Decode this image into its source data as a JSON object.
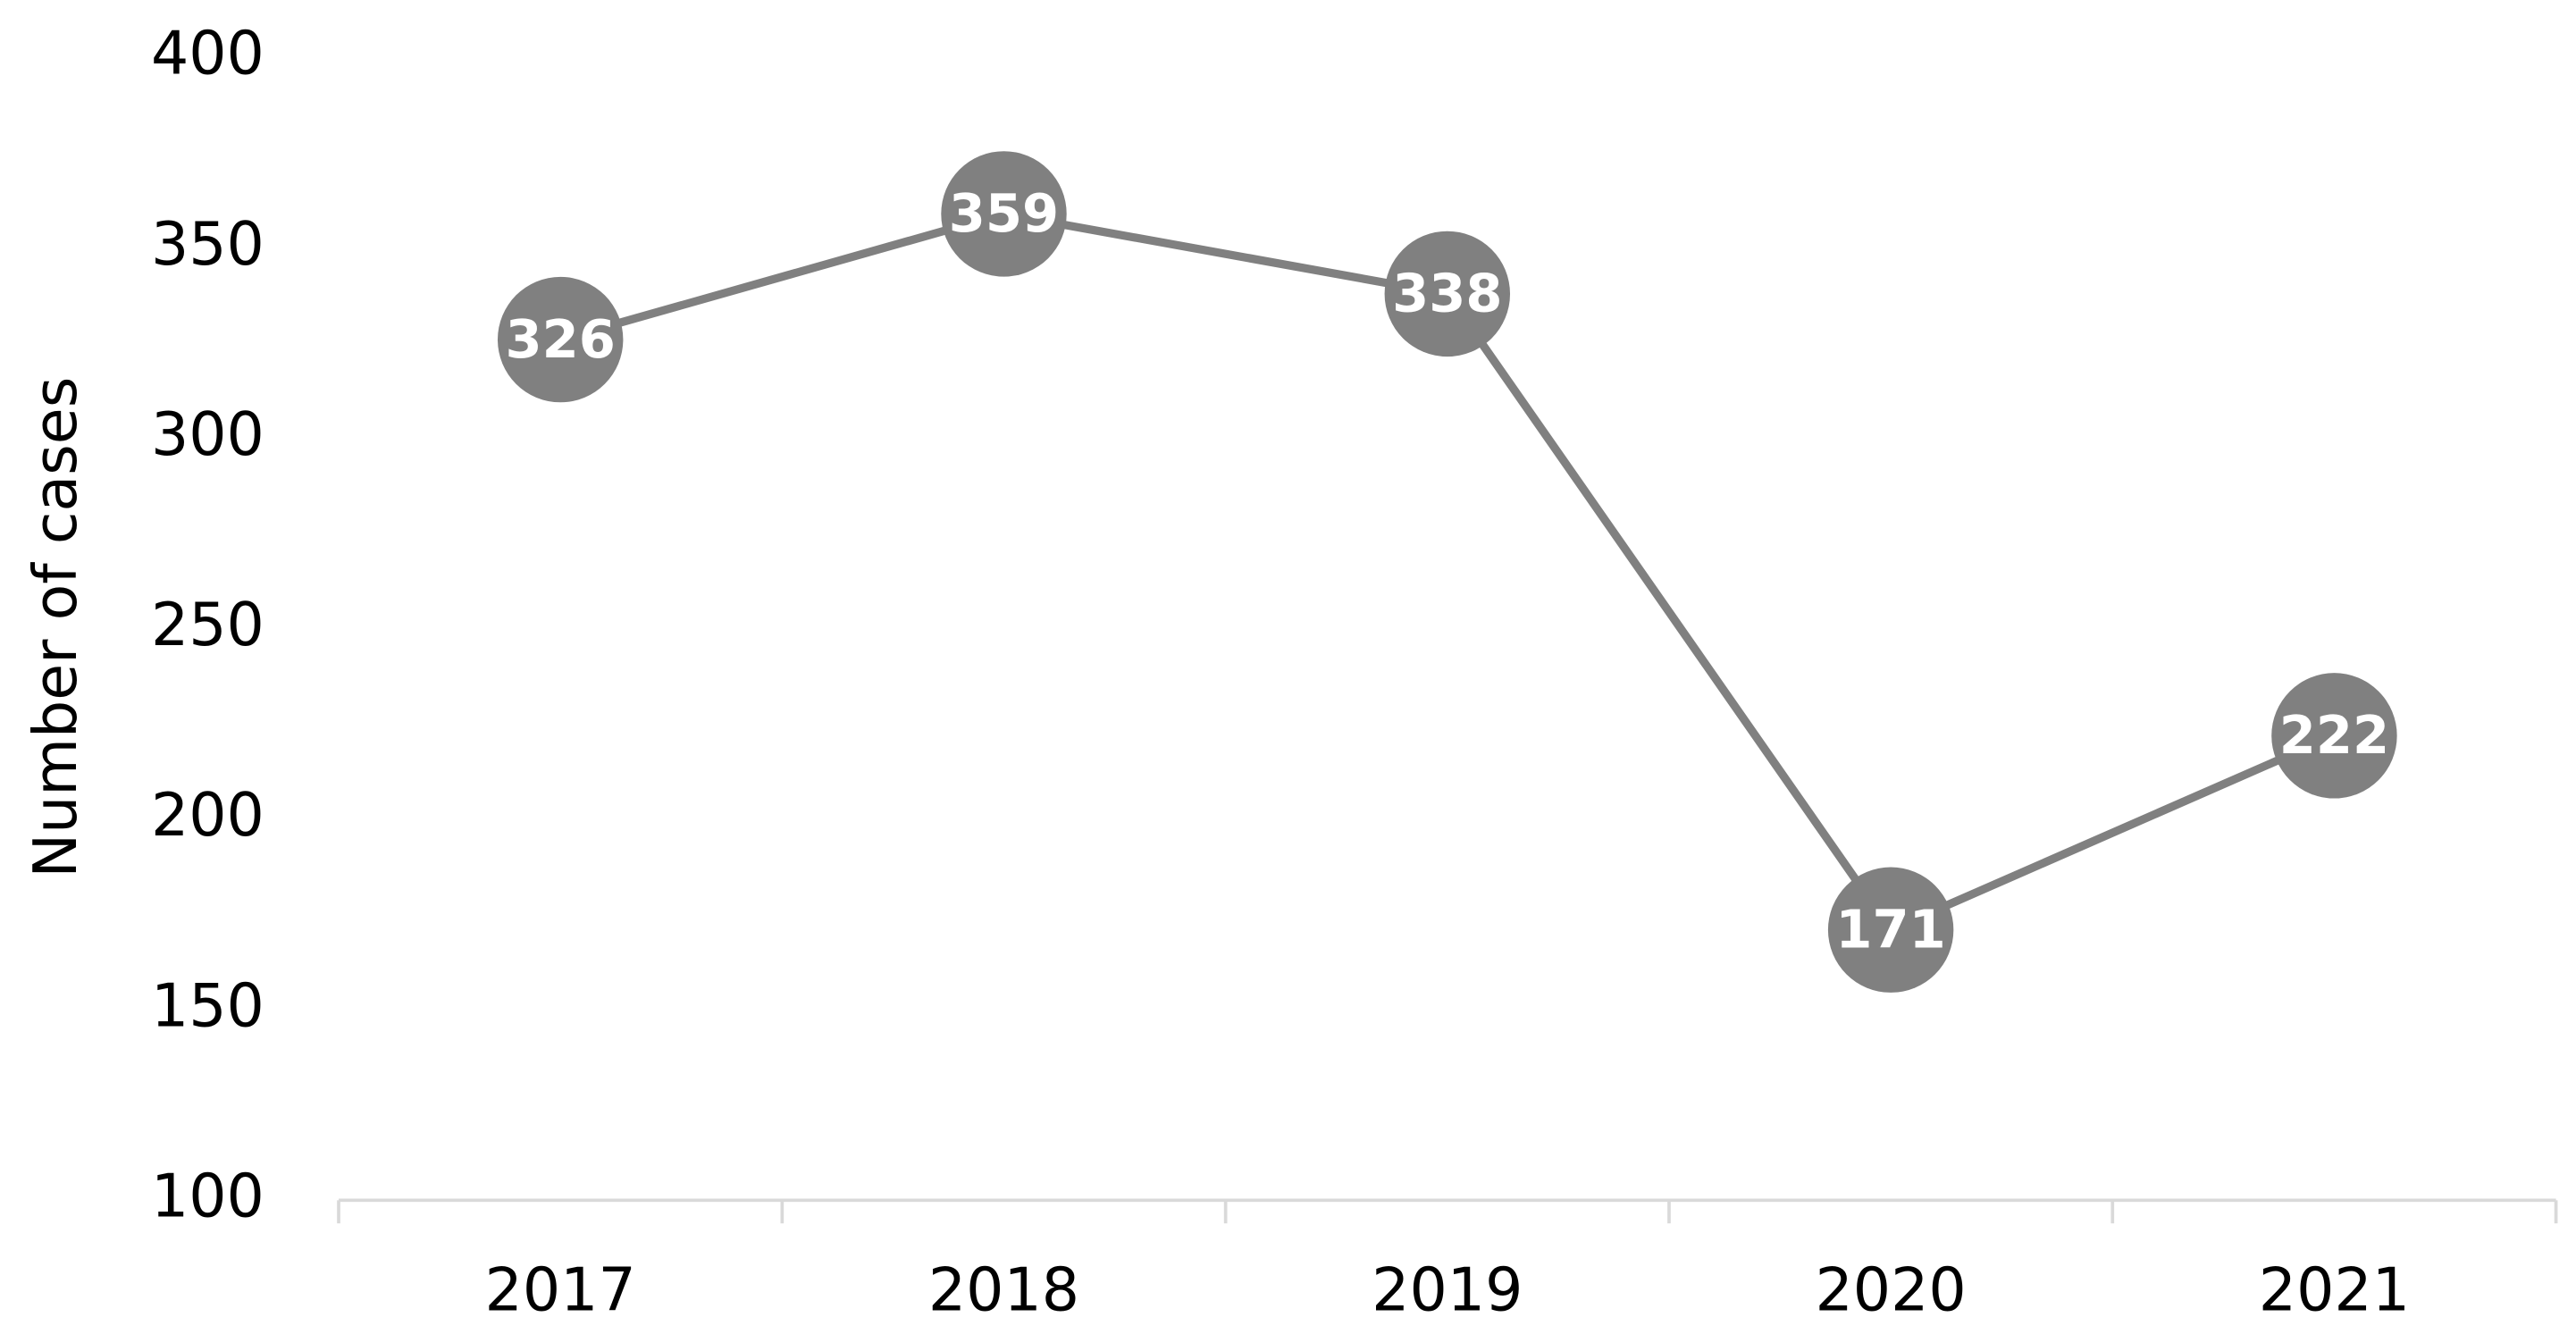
{
  "chart_data": {
    "type": "line",
    "y_label": "Number of cases",
    "categories": [
      "2017",
      "2018",
      "2019",
      "2020",
      "2021"
    ],
    "series": [
      {
        "name": "Number of cases",
        "color": "#808080",
        "values": [
          326,
          359,
          338,
          171,
          222
        ]
      }
    ],
    "ylim": [
      100,
      400
    ],
    "yticks": [
      100,
      150,
      200,
      250,
      300,
      350,
      400
    ],
    "grid": false,
    "data_labels": true
  }
}
